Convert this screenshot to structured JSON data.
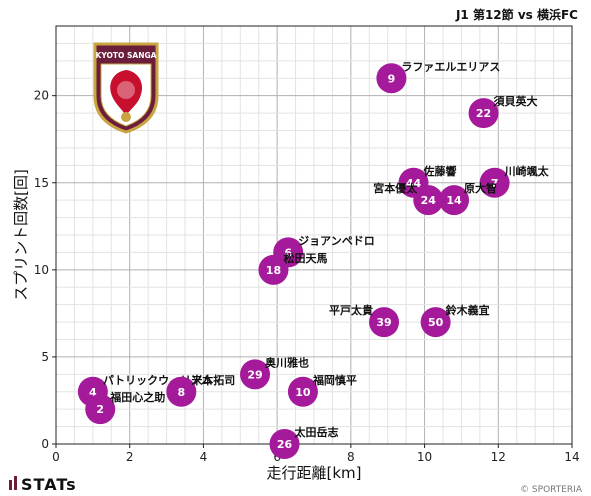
{
  "title": "J1 第12節 vs 横浜FC",
  "footer": {
    "brand": "STATs",
    "copyright": "© SPORTERIA"
  },
  "logo": {
    "text": "KYOTO SANGA",
    "colors": {
      "primary": "#6b1e3c",
      "gold": "#c9a441",
      "red": "#c8102e"
    }
  },
  "colors": {
    "marker": "#a51a9b",
    "grid_major": "#b0b0b0",
    "grid_minor": "#e3e3e3"
  },
  "chart_data": {
    "type": "scatter",
    "title": "J1 第12節 vs 横浜FC",
    "xlabel": "走行距離[km]",
    "ylabel": "スプリント回数[回]",
    "xlim": [
      0,
      14
    ],
    "ylim": [
      0,
      24
    ],
    "xticks": [
      0,
      2,
      4,
      6,
      8,
      10,
      12,
      14
    ],
    "yticks": [
      0,
      5,
      10,
      15,
      20
    ],
    "grid": true,
    "points": [
      {
        "number": "9",
        "name": "ラファエルエリアス",
        "x": 9.1,
        "y": 21
      },
      {
        "number": "22",
        "name": "須貝英大",
        "x": 11.6,
        "y": 19
      },
      {
        "number": "7",
        "name": "川崎颯太",
        "x": 11.9,
        "y": 15
      },
      {
        "number": "44",
        "name": "佐藤響",
        "x": 9.7,
        "y": 15
      },
      {
        "number": "24",
        "name": "宮本優太",
        "x": 10.1,
        "y": 14
      },
      {
        "number": "14",
        "name": "原大智",
        "x": 10.8,
        "y": 14
      },
      {
        "number": "6",
        "name": "ジョアンペドロ",
        "x": 6.3,
        "y": 11
      },
      {
        "number": "18",
        "name": "松田天馬",
        "x": 5.9,
        "y": 10
      },
      {
        "number": "39",
        "name": "平戸太貴",
        "x": 8.9,
        "y": 7
      },
      {
        "number": "50",
        "name": "鈴木義宜",
        "x": 10.3,
        "y": 7
      },
      {
        "number": "29",
        "name": "奥川雅也",
        "x": 5.4,
        "y": 4
      },
      {
        "number": "10",
        "name": "福岡慎平",
        "x": 6.7,
        "y": 3
      },
      {
        "number": "4",
        "name": "パトリックウィリアム",
        "x": 1.0,
        "y": 3
      },
      {
        "number": "8",
        "name": "米本拓司",
        "x": 3.4,
        "y": 3
      },
      {
        "number": "2",
        "name": "福田心之助",
        "x": 1.2,
        "y": 2
      },
      {
        "number": "26",
        "name": "太田岳志",
        "x": 6.2,
        "y": 0
      }
    ]
  }
}
